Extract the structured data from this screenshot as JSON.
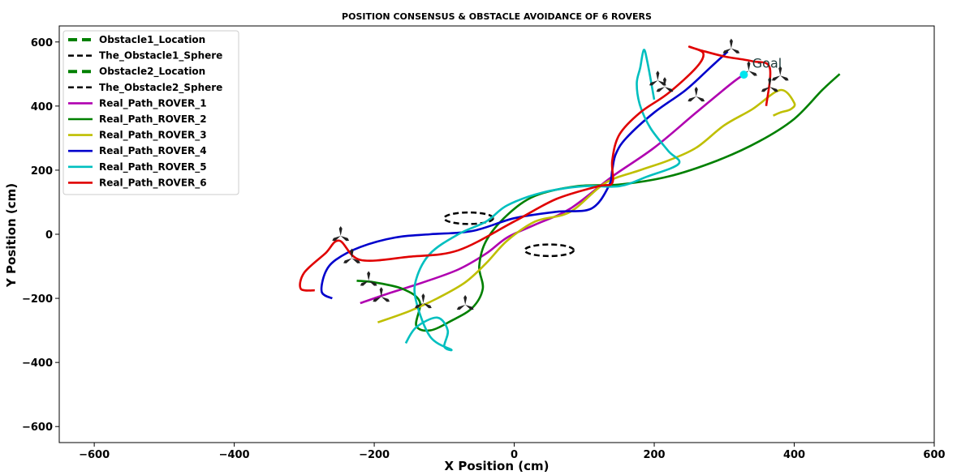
{
  "chart_data": {
    "type": "line",
    "title": "POSITION CONSENSUS & OBSTACLE AVOIDANCE OF 6 ROVERS",
    "xlabel": "X Position (cm)",
    "ylabel": "Y Position (cm)",
    "xlim": [
      -650,
      600
    ],
    "ylim": [
      -650,
      650
    ],
    "xticks": [
      -600,
      -400,
      -200,
      0,
      200,
      400,
      600
    ],
    "yticks": [
      -600,
      -400,
      -200,
      0,
      200,
      400,
      600
    ],
    "xtick_labels": [
      "−600",
      "−400",
      "−200",
      "0",
      "200",
      "400",
      "600"
    ],
    "ytick_labels": [
      "−600",
      "−400",
      "−200",
      "0",
      "200",
      "400",
      "600"
    ],
    "grid": false,
    "legend_position": "top-left",
    "annotation": {
      "text": "Goal",
      "x": 340,
      "y": 520
    },
    "goal_point": {
      "x": 328,
      "y": 498,
      "color": "#00e5ee"
    },
    "obstacles": [
      {
        "name": "Obstacle1_Location",
        "center": [
          -65,
          50
        ],
        "rx": 35,
        "ry": 18
      },
      {
        "name": "Obstacle2_Location",
        "center": [
          50,
          -50
        ],
        "rx": 35,
        "ry": 18
      }
    ],
    "legend": [
      {
        "label": "Obstacle1_Location",
        "color": "#008000",
        "style": "dashed-thick"
      },
      {
        "label": "The_Obstacle1_Sphere",
        "color": "#000000",
        "style": "dashed"
      },
      {
        "label": "Obstacle2_Location",
        "color": "#008000",
        "style": "dashed-thick"
      },
      {
        "label": "The_Obstacle2_Sphere",
        "color": "#000000",
        "style": "dashed"
      },
      {
        "label": "Real_Path_ROVER_1",
        "color": "#b000b0",
        "style": "solid"
      },
      {
        "label": "Real_Path_ROVER_2",
        "color": "#008000",
        "style": "solid"
      },
      {
        "label": "Real_Path_ROVER_3",
        "color": "#bfbf00",
        "style": "solid"
      },
      {
        "label": "Real_Path_ROVER_4",
        "color": "#0000cc",
        "style": "solid"
      },
      {
        "label": "Real_Path_ROVER_5",
        "color": "#00bfbf",
        "style": "solid"
      },
      {
        "label": "Real_Path_ROVER_6",
        "color": "#e00000",
        "style": "solid"
      }
    ],
    "series": [
      {
        "name": "Real_Path_ROVER_1",
        "color": "#b000b0",
        "x": [
          -220,
          -180,
          -130,
          -80,
          -40,
          -10,
          30,
          80,
          140,
          200,
          260,
          310,
          328
        ],
        "y": [
          -215,
          -185,
          -150,
          -110,
          -60,
          -10,
          30,
          80,
          180,
          270,
          380,
          470,
          498
        ]
      },
      {
        "name": "Real_Path_ROVER_2",
        "color": "#008000",
        "x": [
          -225,
          -200,
          -160,
          -135,
          -140,
          -120,
          -90,
          -60,
          -45,
          -50,
          -40,
          -10,
          30,
          90,
          150,
          220,
          290,
          350,
          400,
          440,
          465
        ],
        "y": [
          -145,
          -150,
          -170,
          -210,
          -285,
          -300,
          -270,
          -230,
          -170,
          -100,
          -20,
          60,
          120,
          150,
          155,
          180,
          230,
          290,
          360,
          450,
          500
        ]
      },
      {
        "name": "Real_Path_ROVER_3",
        "color": "#bfbf00",
        "x": [
          -195,
          -150,
          -110,
          -70,
          -40,
          -10,
          30,
          80,
          130,
          180,
          220,
          260,
          300,
          340,
          380,
          400,
          395,
          380,
          370
        ],
        "y": [
          -275,
          -240,
          -200,
          -150,
          -90,
          -20,
          40,
          70,
          160,
          200,
          230,
          270,
          340,
          390,
          450,
          410,
          390,
          380,
          370
        ]
      },
      {
        "name": "Real_Path_ROVER_4",
        "color": "#0000cc",
        "x": [
          -260,
          -275,
          -270,
          -255,
          -220,
          -170,
          -120,
          -60,
          0,
          60,
          110,
          135,
          140,
          145,
          160,
          200,
          245,
          280,
          305
        ],
        "y": [
          -200,
          -180,
          -120,
          -80,
          -40,
          -10,
          0,
          10,
          50,
          70,
          80,
          150,
          200,
          250,
          300,
          380,
          450,
          520,
          570
        ]
      },
      {
        "name": "Real_Path_ROVER_5",
        "color": "#00bfbf",
        "x": [
          -155,
          -140,
          -110,
          -95,
          -100,
          -90,
          -120,
          -140,
          -140,
          -120,
          -80,
          -40,
          -10,
          40,
          100,
          150,
          190,
          235,
          220,
          195,
          180,
          175,
          180,
          185,
          190,
          200
        ],
        "y": [
          -340,
          -290,
          -260,
          -300,
          -350,
          -360,
          -320,
          -210,
          -140,
          -60,
          0,
          40,
          90,
          130,
          150,
          150,
          180,
          220,
          260,
          330,
          400,
          470,
          520,
          575,
          540,
          420
        ]
      },
      {
        "name": "Real_Path_ROVER_6",
        "color": "#e00000",
        "x": [
          -285,
          -305,
          -300,
          -270,
          -250,
          -220,
          -150,
          -80,
          0,
          60,
          120,
          140,
          140,
          150,
          180,
          220,
          260,
          270,
          250,
          265,
          300,
          340,
          365,
          360
        ],
        "y": [
          -175,
          -170,
          -120,
          -60,
          -20,
          -80,
          -70,
          -50,
          40,
          110,
          150,
          160,
          230,
          310,
          380,
          440,
          520,
          565,
          585,
          575,
          555,
          540,
          520,
          400
        ]
      }
    ],
    "rover_markers": [
      {
        "x": -248,
        "y": -5
      },
      {
        "x": -232,
        "y": -75
      },
      {
        "x": -208,
        "y": -145
      },
      {
        "x": -190,
        "y": -195
      },
      {
        "x": -130,
        "y": -215
      },
      {
        "x": -70,
        "y": -220
      },
      {
        "x": 310,
        "y": 580
      },
      {
        "x": 335,
        "y": 510
      },
      {
        "x": 380,
        "y": 495
      },
      {
        "x": 215,
        "y": 460
      },
      {
        "x": 260,
        "y": 430
      },
      {
        "x": 365,
        "y": 460
      },
      {
        "x": 205,
        "y": 480
      }
    ]
  }
}
